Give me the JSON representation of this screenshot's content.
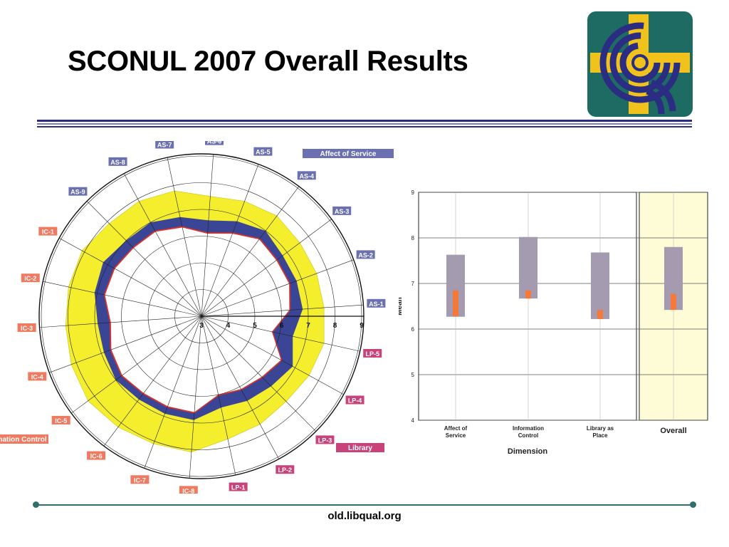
{
  "slide": {
    "title": "SCONUL 2007 Overall Results",
    "footer": "old.libqual.org"
  },
  "colors": {
    "navy": "#2a2d82",
    "logo_green": "#1d6b62",
    "logo_yellow": "#f0c21b",
    "band_yellow": "#f4ee2c",
    "band_blue": "#3a4596",
    "band_red": "#d8322c",
    "label_as": "#6a70b0",
    "label_ic": "#ef7a60",
    "label_lp": "#c9437b",
    "bar_gray": "#a49bb0",
    "bar_orange": "#f4793a",
    "overall_bg": "#fdfcd6"
  },
  "icons": {
    "logo": "libqual-logo-icon"
  },
  "chart_data": [
    {
      "type": "radar",
      "axis_ticks": [
        "3",
        "4",
        "5",
        "6",
        "7",
        "8",
        "9"
      ],
      "range": [
        3,
        9
      ],
      "legend": [
        {
          "name": "Affect of Service",
          "color": "#6a70b0"
        },
        {
          "name": "Information Control",
          "color": "#ef7a60"
        },
        {
          "name": "Library",
          "color": "#c9437b"
        }
      ],
      "spokes": [
        "AS-1",
        "AS-2",
        "AS-3",
        "AS-4",
        "AS-5",
        "AS-6",
        "AS-7",
        "AS-8",
        "AS-9",
        "IC-1",
        "IC-2",
        "IC-3",
        "IC-4",
        "IC-5",
        "IC-6",
        "IC-7",
        "IC-8",
        "LP-1",
        "LP-2",
        "LP-3",
        "LP-4",
        "LP-5"
      ],
      "series": [
        {
          "values_min": [
            6.3,
            6.5,
            6.5,
            6.6,
            6.3,
            6.1,
            6.4,
            6.6,
            6.6,
            6.7,
            6.7,
            6.4,
            6.6,
            6.7,
            6.6,
            6.6,
            6.6,
            6.0,
            6.1,
            6.2,
            6.4,
            5.7
          ]
        },
        {
          "values_adequate": [
            6.8,
            6.8,
            6.8,
            7.0,
            6.8,
            6.6,
            6.8,
            7.0,
            7.0,
            7.2,
            7.1,
            6.9,
            6.9,
            7.0,
            6.9,
            6.9,
            6.9,
            6.5,
            6.6,
            6.7,
            6.9,
            6.5
          ]
        },
        {
          "values_desired": [
            7.6,
            7.6,
            7.6,
            7.7,
            7.6,
            7.5,
            7.8,
            7.9,
            7.9,
            8.1,
            8.1,
            8.1,
            8.2,
            8.3,
            8.2,
            8.1,
            8.1,
            7.7,
            7.6,
            7.5,
            7.6,
            7.7
          ]
        }
      ]
    },
    {
      "type": "bar",
      "ylabel": "Mean",
      "xlabel": "Dimension",
      "ylim": [
        4,
        9
      ],
      "yticks": [
        "4",
        "5",
        "6",
        "7",
        "8",
        "9"
      ],
      "categories": [
        {
          "label": [
            "Affect of",
            "Service"
          ],
          "min": 6.27,
          "desired": 7.63,
          "perceived_low": 6.28,
          "perceived_high": 6.85
        },
        {
          "label": [
            "Information",
            "Control"
          ],
          "min": 6.67,
          "desired": 8.02,
          "perceived_low": 6.67,
          "perceived_high": 6.85
        },
        {
          "label": [
            "Library as",
            "Place"
          ],
          "min": 6.22,
          "desired": 7.68,
          "perceived_low": 6.22,
          "perceived_high": 6.42
        },
        {
          "label": [
            "Overall"
          ],
          "min": 6.42,
          "desired": 7.8,
          "perceived_low": 6.42,
          "perceived_high": 6.77
        }
      ]
    }
  ]
}
